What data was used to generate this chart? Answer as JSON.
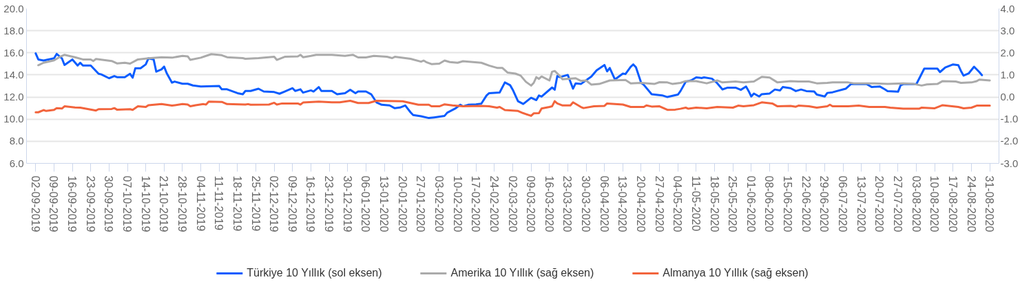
{
  "chart_data": {
    "type": "line",
    "grid": "y",
    "legend": "bottom",
    "line_style": "solid",
    "xlim": [
      "2019-08-29T12:00",
      "2020-09-03T12:00"
    ],
    "xticks": [
      {
        "value": "2019-09-02",
        "label": "02-09-2019"
      },
      {
        "value": "2019-09-09",
        "label": "09-09-2019"
      },
      {
        "value": "2019-09-16",
        "label": "16-09-2019"
      },
      {
        "value": "2019-09-23",
        "label": "23-09-2019"
      },
      {
        "value": "2019-09-30",
        "label": "30-09-2019"
      },
      {
        "value": "2019-10-07",
        "label": "07-10-2019"
      },
      {
        "value": "2019-10-14",
        "label": "14-10-2019"
      },
      {
        "value": "2019-10-21",
        "label": "21-10-2019"
      },
      {
        "value": "2019-10-28",
        "label": "28-10-2019"
      },
      {
        "value": "2019-11-04",
        "label": "04-11-2019"
      },
      {
        "value": "2019-11-11",
        "label": "11-11-2019"
      },
      {
        "value": "2019-11-18",
        "label": "18-11-2019"
      },
      {
        "value": "2019-11-25",
        "label": "25-11-2019"
      },
      {
        "value": "2019-12-02",
        "label": "02-12-2019"
      },
      {
        "value": "2019-12-09",
        "label": "09-12-2019"
      },
      {
        "value": "2019-12-16",
        "label": "16-12-2019"
      },
      {
        "value": "2019-12-23",
        "label": "23-12-2019"
      },
      {
        "value": "2019-12-30",
        "label": "30-12-2019"
      },
      {
        "value": "2020-01-06",
        "label": "06-01-2020"
      },
      {
        "value": "2020-01-13",
        "label": "13-01-2020"
      },
      {
        "value": "2020-01-20",
        "label": "20-01-2020"
      },
      {
        "value": "2020-01-27",
        "label": "27-01-2020"
      },
      {
        "value": "2020-02-03",
        "label": "03-02-2020"
      },
      {
        "value": "2020-02-10",
        "label": "10-02-2020"
      },
      {
        "value": "2020-02-17",
        "label": "17-02-2020"
      },
      {
        "value": "2020-02-24",
        "label": "24-02-2020"
      },
      {
        "value": "2020-03-02",
        "label": "02-03-2020"
      },
      {
        "value": "2020-03-09",
        "label": "09-03-2020"
      },
      {
        "value": "2020-03-16",
        "label": "16-03-2020"
      },
      {
        "value": "2020-03-23",
        "label": "23-03-2020"
      },
      {
        "value": "2020-03-30",
        "label": "30-03-2020"
      },
      {
        "value": "2020-04-06",
        "label": "06-04-2020"
      },
      {
        "value": "2020-04-13",
        "label": "13-04-2020"
      },
      {
        "value": "2020-04-20",
        "label": "20-04-2020"
      },
      {
        "value": "2020-04-27",
        "label": "27-04-2020"
      },
      {
        "value": "2020-05-04",
        "label": "04-05-2020"
      },
      {
        "value": "2020-05-11",
        "label": "11-05-2020"
      },
      {
        "value": "2020-05-18",
        "label": "18-05-2020"
      },
      {
        "value": "2020-05-25",
        "label": "25-05-2020"
      },
      {
        "value": "2020-06-01",
        "label": "01-06-2020"
      },
      {
        "value": "2020-06-08",
        "label": "08-06-2020"
      },
      {
        "value": "2020-06-15",
        "label": "15-06-2020"
      },
      {
        "value": "2020-06-22",
        "label": "22-06-2020"
      },
      {
        "value": "2020-06-29",
        "label": "29-06-2020"
      },
      {
        "value": "2020-07-06",
        "label": "06-07-2020"
      },
      {
        "value": "2020-07-13",
        "label": "13-07-2020"
      },
      {
        "value": "2020-07-20",
        "label": "20-07-2020"
      },
      {
        "value": "2020-07-27",
        "label": "27-07-2020"
      },
      {
        "value": "2020-08-03",
        "label": "03-08-2020"
      },
      {
        "value": "2020-08-10",
        "label": "10-08-2020"
      },
      {
        "value": "2020-08-17",
        "label": "17-08-2020"
      },
      {
        "value": "2020-08-24",
        "label": "24-08-2020"
      },
      {
        "value": "2020-08-31",
        "label": "31-08-2020"
      }
    ],
    "ylim": [
      6,
      20
    ],
    "yticks": [
      {
        "value": 6,
        "label": "6.0"
      },
      {
        "value": 8,
        "label": "8.0"
      },
      {
        "value": 10,
        "label": "10.0"
      },
      {
        "value": 12,
        "label": "12.0"
      },
      {
        "value": 14,
        "label": "14.0"
      },
      {
        "value": 16,
        "label": "16.0"
      },
      {
        "value": 18,
        "label": "18.0"
      },
      {
        "value": 20,
        "label": "20.0"
      }
    ],
    "y2lim": [
      -3,
      4
    ],
    "y2ticks": [
      {
        "value": -3,
        "label": "-3.0"
      },
      {
        "value": -2,
        "label": "-2.0"
      },
      {
        "value": -1,
        "label": "-1.0"
      },
      {
        "value": 0,
        "label": "0.0"
      },
      {
        "value": 1,
        "label": "1.0"
      },
      {
        "value": 2,
        "label": "2.0"
      },
      {
        "value": 3,
        "label": "3.0"
      },
      {
        "value": 4,
        "label": "4.0"
      }
    ],
    "series": [
      {
        "name": "Türkiye 10 Yıllık (sol eksen)",
        "color": "#0a5cff",
        "x": [
          "2019-09-02",
          "2019-09-03",
          "2019-09-05",
          "2019-09-09",
          "2019-09-10",
          "2019-09-12",
          "2019-09-13",
          "2019-09-16",
          "2019-09-18",
          "2019-09-19",
          "2019-09-20",
          "2019-09-23",
          "2019-09-26",
          "2019-09-27",
          "2019-09-30",
          "2019-10-02",
          "2019-10-03",
          "2019-10-06",
          "2019-10-08",
          "2019-10-09",
          "2019-10-10",
          "2019-10-12",
          "2019-10-14",
          "2019-10-15",
          "2019-10-17",
          "2019-10-18",
          "2019-10-20",
          "2019-10-21",
          "2019-10-22",
          "2019-10-24",
          "2019-10-25",
          "2019-10-28",
          "2019-10-30",
          "2019-11-01",
          "2019-11-04",
          "2019-11-11",
          "2019-11-12",
          "2019-11-14",
          "2019-11-18",
          "2019-11-20",
          "2019-11-21",
          "2019-11-23",
          "2019-11-26",
          "2019-11-28",
          "2019-12-02",
          "2019-12-04",
          "2019-12-06",
          "2019-12-09",
          "2019-12-10",
          "2019-12-12",
          "2019-12-13",
          "2019-12-16",
          "2019-12-17",
          "2019-12-19",
          "2019-12-20",
          "2019-12-24",
          "2019-12-26",
          "2019-12-29",
          "2019-12-31",
          "2020-01-02",
          "2020-01-03",
          "2020-01-06",
          "2020-01-08",
          "2020-01-10",
          "2020-01-12",
          "2020-01-15",
          "2020-01-17",
          "2020-01-19",
          "2020-01-21",
          "2020-01-23",
          "2020-01-24",
          "2020-01-27",
          "2020-01-30",
          "2020-02-01",
          "2020-02-05",
          "2020-02-06",
          "2020-02-09",
          "2020-02-11",
          "2020-02-12",
          "2020-02-14",
          "2020-02-17",
          "2020-02-19",
          "2020-02-21",
          "2020-02-22",
          "2020-02-26",
          "2020-02-28",
          "2020-03-01",
          "2020-03-02",
          "2020-03-04",
          "2020-03-06",
          "2020-03-09",
          "2020-03-11",
          "2020-03-12",
          "2020-03-13",
          "2020-03-17",
          "2020-03-18",
          "2020-03-19",
          "2020-03-20",
          "2020-03-23",
          "2020-03-25",
          "2020-03-26",
          "2020-03-28",
          "2020-04-01",
          "2020-04-03",
          "2020-04-06",
          "2020-04-07",
          "2020-04-08",
          "2020-04-10",
          "2020-04-13",
          "2020-04-14",
          "2020-04-16",
          "2020-04-17",
          "2020-04-18",
          "2020-04-20",
          "2020-04-21",
          "2020-04-24",
          "2020-04-28",
          "2020-04-30",
          "2020-05-04",
          "2020-05-05",
          "2020-05-07",
          "2020-05-09",
          "2020-05-11",
          "2020-05-13",
          "2020-05-14",
          "2020-05-17",
          "2020-05-19",
          "2020-05-21",
          "2020-05-23",
          "2020-05-26",
          "2020-05-28",
          "2020-05-30",
          "2020-05-31",
          "2020-06-01",
          "2020-06-02",
          "2020-06-04",
          "2020-06-05",
          "2020-06-08",
          "2020-06-10",
          "2020-06-12",
          "2020-06-13",
          "2020-06-16",
          "2020-06-18",
          "2020-06-20",
          "2020-06-22",
          "2020-06-25",
          "2020-06-26",
          "2020-06-29",
          "2020-06-30",
          "2020-07-02",
          "2020-07-07",
          "2020-07-09",
          "2020-07-15",
          "2020-07-17",
          "2020-07-20",
          "2020-07-22",
          "2020-07-23",
          "2020-07-27",
          "2020-07-28",
          "2020-07-29",
          "2020-08-03",
          "2020-08-06",
          "2020-08-11",
          "2020-08-12",
          "2020-08-14",
          "2020-08-17",
          "2020-08-19",
          "2020-08-20",
          "2020-08-21",
          "2020-08-23",
          "2020-08-25",
          "2020-08-27",
          "2020-08-28"
        ],
        "values": [
          15.95,
          15.4,
          15.3,
          15.5,
          15.9,
          15.5,
          14.9,
          15.4,
          14.85,
          15.1,
          14.85,
          14.85,
          14.1,
          14.05,
          13.7,
          13.9,
          13.8,
          13.8,
          14.1,
          13.75,
          14.6,
          14.6,
          14.95,
          15.5,
          15.4,
          14.3,
          14.5,
          14.75,
          14.15,
          13.3,
          13.4,
          13.2,
          13.2,
          13.05,
          12.95,
          13.0,
          12.7,
          12.7,
          12.35,
          12.25,
          12.55,
          12.55,
          12.75,
          12.5,
          12.45,
          12.3,
          12.5,
          12.8,
          12.55,
          12.7,
          12.4,
          12.6,
          12.5,
          12.9,
          12.55,
          12.55,
          12.25,
          12.35,
          12.66,
          12.35,
          12.5,
          12.5,
          12.25,
          11.52,
          11.3,
          11.24,
          10.99,
          11.05,
          11.24,
          10.62,
          10.37,
          10.26,
          10.1,
          10.16,
          10.3,
          10.58,
          10.95,
          11.3,
          11.16,
          11.3,
          11.34,
          11.4,
          12.14,
          12.35,
          12.41,
          13.32,
          13.07,
          12.66,
          11.62,
          11.37,
          11.93,
          11.72,
          12.14,
          12.04,
          12.86,
          12.66,
          13.9,
          13.8,
          14.0,
          12.76,
          13.24,
          13.18,
          13.86,
          14.42,
          14.9,
          14.32,
          14.63,
          13.59,
          14.12,
          14.08,
          14.74,
          14.95,
          14.7,
          13.28,
          13.1,
          12.25,
          12.15,
          12.0,
          12.22,
          12.54,
          13.39,
          13.5,
          13.78,
          13.72,
          13.78,
          13.66,
          13.25,
          12.69,
          12.85,
          12.85,
          12.65,
          12.95,
          12.54,
          12.05,
          12.32,
          12.05,
          12.26,
          12.32,
          12.68,
          12.6,
          12.9,
          12.8,
          12.54,
          12.68,
          12.54,
          12.5,
          12.22,
          12.05,
          12.37,
          12.43,
          12.75,
          13.17,
          13.17,
          12.9,
          12.96,
          12.69,
          12.54,
          12.48,
          13.07,
          13.17,
          13.17,
          14.57,
          14.57,
          14.26,
          14.67,
          14.95,
          14.88,
          14.36,
          13.94,
          14.15,
          14.74,
          14.26,
          13.98
        ]
      },
      {
        "name": "Amerika 10 Yıllık (sağ eksen)",
        "color": "#aaaaaa",
        "axis": "y2",
        "x": [
          "2019-09-03",
          "2019-09-05",
          "2019-09-09",
          "2019-09-11",
          "2019-09-13",
          "2019-09-17",
          "2019-09-20",
          "2019-09-23",
          "2019-09-24",
          "2019-09-25",
          "2019-09-29",
          "2019-10-01",
          "2019-10-03",
          "2019-10-06",
          "2019-10-08",
          "2019-10-11",
          "2019-10-15",
          "2019-10-20",
          "2019-10-24",
          "2019-10-28",
          "2019-10-30",
          "2019-10-31",
          "2019-11-04",
          "2019-11-06",
          "2019-11-08",
          "2019-11-12",
          "2019-11-14",
          "2019-11-20",
          "2019-11-21",
          "2019-11-26",
          "2019-12-02",
          "2019-12-03",
          "2019-12-06",
          "2019-12-11",
          "2019-12-12",
          "2019-12-13",
          "2019-12-16",
          "2019-12-18",
          "2019-12-24",
          "2019-12-29",
          "2020-01-01",
          "2020-01-03",
          "2020-01-06",
          "2020-01-09",
          "2020-01-14",
          "2020-01-16",
          "2020-01-17",
          "2020-01-23",
          "2020-01-27",
          "2020-01-28",
          "2020-01-29",
          "2020-01-31",
          "2020-02-03",
          "2020-02-05",
          "2020-02-07",
          "2020-02-10",
          "2020-02-12",
          "2020-02-19",
          "2020-02-22",
          "2020-02-25",
          "2020-02-27",
          "2020-02-29",
          "2020-03-03",
          "2020-03-05",
          "2020-03-07",
          "2020-03-09",
          "2020-03-10",
          "2020-03-11",
          "2020-03-12",
          "2020-03-13",
          "2020-03-16",
          "2020-03-17",
          "2020-03-18",
          "2020-03-20",
          "2020-03-21",
          "2020-03-26",
          "2020-03-28",
          "2020-03-30",
          "2020-04-01",
          "2020-04-04",
          "2020-04-08",
          "2020-04-14",
          "2020-04-16",
          "2020-04-20",
          "2020-04-25",
          "2020-04-27",
          "2020-04-30",
          "2020-05-02",
          "2020-05-05",
          "2020-05-07",
          "2020-05-11",
          "2020-05-15",
          "2020-05-19",
          "2020-05-21",
          "2020-05-26",
          "2020-05-29",
          "2020-06-02",
          "2020-06-05",
          "2020-06-08",
          "2020-06-11",
          "2020-06-16",
          "2020-06-19",
          "2020-06-23",
          "2020-06-26",
          "2020-06-30",
          "2020-07-02",
          "2020-07-08",
          "2020-07-10",
          "2020-07-18",
          "2020-07-23",
          "2020-07-29",
          "2020-08-02",
          "2020-08-05",
          "2020-08-07",
          "2020-08-11",
          "2020-08-13",
          "2020-08-18",
          "2020-08-20",
          "2020-08-24",
          "2020-08-26",
          "2020-08-27",
          "2020-08-31"
        ],
        "values": [
          1.44,
          1.55,
          1.66,
          1.8,
          1.91,
          1.8,
          1.7,
          1.7,
          1.63,
          1.72,
          1.66,
          1.63,
          1.52,
          1.55,
          1.51,
          1.7,
          1.75,
          1.8,
          1.78,
          1.86,
          1.84,
          1.68,
          1.78,
          1.86,
          1.94,
          1.89,
          1.8,
          1.76,
          1.73,
          1.76,
          1.82,
          1.68,
          1.82,
          1.84,
          1.91,
          1.8,
          1.86,
          1.91,
          1.91,
          1.86,
          1.91,
          1.79,
          1.79,
          1.86,
          1.82,
          1.76,
          1.82,
          1.73,
          1.6,
          1.65,
          1.58,
          1.49,
          1.51,
          1.65,
          1.58,
          1.55,
          1.62,
          1.55,
          1.42,
          1.32,
          1.32,
          1.11,
          1.06,
          0.97,
          0.69,
          0.52,
          0.64,
          0.9,
          0.82,
          0.93,
          0.75,
          1.14,
          1.18,
          0.95,
          0.8,
          0.85,
          0.73,
          0.75,
          0.56,
          0.59,
          0.75,
          0.77,
          0.62,
          0.64,
          0.59,
          0.67,
          0.66,
          0.59,
          0.64,
          0.72,
          0.72,
          0.62,
          0.75,
          0.66,
          0.7,
          0.66,
          0.7,
          0.91,
          0.88,
          0.66,
          0.72,
          0.7,
          0.7,
          0.62,
          0.64,
          0.66,
          0.66,
          0.62,
          0.62,
          0.59,
          0.62,
          0.59,
          0.52,
          0.57,
          0.59,
          0.72,
          0.7,
          0.64,
          0.66,
          0.72,
          0.79,
          0.75
        ]
      },
      {
        "name": "Almanya 10 Yıllık (sağ eksen)",
        "color": "#f2643c",
        "axis": "y2",
        "x": [
          "2019-09-02",
          "2019-09-03",
          "2019-09-05",
          "2019-09-06",
          "2019-09-09",
          "2019-09-10",
          "2019-09-12",
          "2019-09-13",
          "2019-09-17",
          "2019-09-19",
          "2019-09-24",
          "2019-09-25",
          "2019-09-26",
          "2019-10-01",
          "2019-10-02",
          "2019-10-03",
          "2019-10-08",
          "2019-10-09",
          "2019-10-11",
          "2019-10-14",
          "2019-10-15",
          "2019-10-20",
          "2019-10-24",
          "2019-10-28",
          "2019-10-30",
          "2019-10-31",
          "2019-11-02",
          "2019-11-05",
          "2019-11-06",
          "2019-11-07",
          "2019-11-12",
          "2019-11-14",
          "2019-11-21",
          "2019-11-22",
          "2019-11-23",
          "2019-11-30",
          "2019-12-02",
          "2019-12-03",
          "2019-12-05",
          "2019-12-11",
          "2019-12-12",
          "2019-12-13",
          "2019-12-19",
          "2019-12-24",
          "2019-12-27",
          "2019-12-31",
          "2020-01-03",
          "2020-01-07",
          "2020-01-10",
          "2020-01-20",
          "2020-01-23",
          "2020-01-26",
          "2020-01-30",
          "2020-01-31",
          "2020-02-03",
          "2020-02-05",
          "2020-02-08",
          "2020-02-12",
          "2020-02-19",
          "2020-02-22",
          "2020-02-25",
          "2020-02-26",
          "2020-02-28",
          "2020-03-04",
          "2020-03-06",
          "2020-03-09",
          "2020-03-10",
          "2020-03-12",
          "2020-03-13",
          "2020-03-16",
          "2020-03-17",
          "2020-03-18",
          "2020-03-19",
          "2020-03-21",
          "2020-03-24",
          "2020-03-25",
          "2020-03-28",
          "2020-03-29",
          "2020-04-02",
          "2020-04-06",
          "2020-04-07",
          "2020-04-13",
          "2020-04-16",
          "2020-04-21",
          "2020-04-22",
          "2020-04-24",
          "2020-04-27",
          "2020-04-30",
          "2020-05-03",
          "2020-05-05",
          "2020-05-07",
          "2020-05-08",
          "2020-05-11",
          "2020-05-15",
          "2020-05-19",
          "2020-05-25",
          "2020-05-27",
          "2020-05-29",
          "2020-06-02",
          "2020-06-05",
          "2020-06-09",
          "2020-06-11",
          "2020-06-16",
          "2020-06-18",
          "2020-06-19",
          "2020-06-23",
          "2020-06-26",
          "2020-06-30",
          "2020-07-01",
          "2020-07-02",
          "2020-07-08",
          "2020-07-12",
          "2020-07-16",
          "2020-07-22",
          "2020-07-24",
          "2020-07-29",
          "2020-08-04",
          "2020-08-05",
          "2020-08-10",
          "2020-08-13",
          "2020-08-19",
          "2020-08-21",
          "2020-08-24",
          "2020-08-26",
          "2020-08-31"
        ],
        "values": [
          -0.69,
          -0.69,
          -0.59,
          -0.63,
          -0.58,
          -0.5,
          -0.52,
          -0.42,
          -0.47,
          -0.48,
          -0.59,
          -0.61,
          -0.55,
          -0.54,
          -0.5,
          -0.57,
          -0.55,
          -0.58,
          -0.42,
          -0.45,
          -0.37,
          -0.32,
          -0.39,
          -0.32,
          -0.34,
          -0.42,
          -0.37,
          -0.32,
          -0.34,
          -0.21,
          -0.22,
          -0.32,
          -0.34,
          -0.32,
          -0.35,
          -0.34,
          -0.26,
          -0.34,
          -0.29,
          -0.29,
          -0.34,
          -0.25,
          -0.21,
          -0.24,
          -0.24,
          -0.17,
          -0.27,
          -0.27,
          -0.17,
          -0.19,
          -0.27,
          -0.35,
          -0.35,
          -0.42,
          -0.42,
          -0.33,
          -0.38,
          -0.42,
          -0.4,
          -0.42,
          -0.48,
          -0.45,
          -0.59,
          -0.63,
          -0.73,
          -0.85,
          -0.74,
          -0.73,
          -0.52,
          -0.45,
          -0.42,
          -0.19,
          -0.29,
          -0.38,
          -0.38,
          -0.24,
          -0.45,
          -0.5,
          -0.42,
          -0.4,
          -0.29,
          -0.34,
          -0.45,
          -0.45,
          -0.38,
          -0.43,
          -0.42,
          -0.58,
          -0.57,
          -0.53,
          -0.48,
          -0.53,
          -0.48,
          -0.51,
          -0.45,
          -0.48,
          -0.39,
          -0.42,
          -0.37,
          -0.24,
          -0.29,
          -0.42,
          -0.4,
          -0.44,
          -0.39,
          -0.42,
          -0.48,
          -0.42,
          -0.35,
          -0.42,
          -0.42,
          -0.39,
          -0.45,
          -0.45,
          -0.48,
          -0.53,
          -0.53,
          -0.48,
          -0.51,
          -0.37,
          -0.45,
          -0.51,
          -0.48,
          -0.39,
          -0.39
        ]
      }
    ]
  }
}
